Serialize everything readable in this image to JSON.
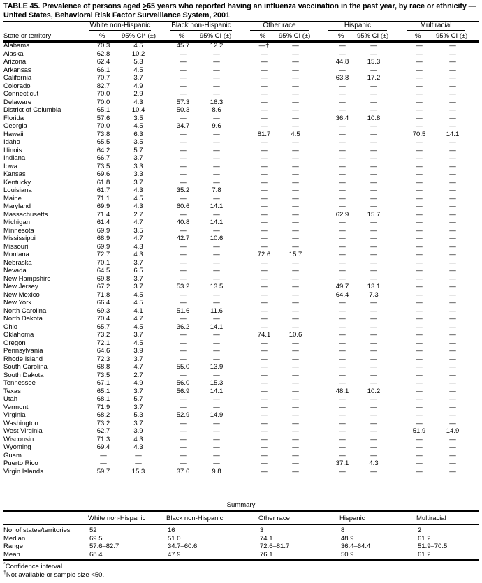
{
  "title": {
    "prefix": "TABLE 45. Prevalence of persons aged ",
    "ge": ">",
    "suffix": "65 years who reported having an influenza vaccination in the past year, by race or ethnicity —  United States, Behavioral Risk Factor Surveillance System, 2001"
  },
  "groups": [
    "White non-Hispanic",
    "Black non-Hispanic",
    "Other race",
    "Hispanic",
    "Multiracial"
  ],
  "col_header_state": "State or territory",
  "col_pct": "%",
  "col_ci_first": "95% CI* (±)",
  "col_ci": "95% CI (±)",
  "rows": [
    [
      "Alabama",
      "70.3",
      "4.5",
      "45.7",
      "12.2",
      "—†",
      "—",
      "—",
      "—",
      "—",
      "—"
    ],
    [
      "Alaska",
      "62.8",
      "10.2",
      "—",
      "—",
      "—",
      "—",
      "—",
      "—",
      "—",
      "—"
    ],
    [
      "Arizona",
      "62.4",
      "5.3",
      "—",
      "—",
      "—",
      "—",
      "44.8",
      "15.3",
      "—",
      "—"
    ],
    [
      "Arkansas",
      "66.1",
      "4.5",
      "—",
      "—",
      "—",
      "—",
      "—",
      "—",
      "—",
      "—"
    ],
    [
      "California",
      "70.7",
      "3.7",
      "—",
      "—",
      "—",
      "—",
      "63.8",
      "17.2",
      "—",
      "—"
    ],
    [
      "Colorado",
      "82.7",
      "4.9",
      "—",
      "—",
      "—",
      "—",
      "—",
      "—",
      "—",
      "—"
    ],
    [
      "Connecticut",
      "70.0",
      "2.9",
      "—",
      "—",
      "—",
      "—",
      "—",
      "—",
      "—",
      "—"
    ],
    [
      "Delaware",
      "70.0",
      "4.3",
      "57.3",
      "16.3",
      "—",
      "—",
      "—",
      "—",
      "—",
      "—"
    ],
    [
      "District of Columbia",
      "65.1",
      "10.4",
      "50.3",
      "8.6",
      "—",
      "—",
      "—",
      "—",
      "—",
      "—"
    ],
    [
      "Florida",
      "57.6",
      "3.5",
      "—",
      "—",
      "—",
      "—",
      "36.4",
      "10.8",
      "—",
      "—"
    ],
    [
      "Georgia",
      "70.0",
      "4.5",
      "34.7",
      "9.6",
      "—",
      "—",
      "—",
      "—",
      "—",
      "—"
    ],
    [
      "Hawaii",
      "73.8",
      "6.3",
      "—",
      "—",
      "81.7",
      "4.5",
      "—",
      "—",
      "70.5",
      "14.1"
    ],
    [
      "Idaho",
      "65.5",
      "3.5",
      "—",
      "—",
      "—",
      "—",
      "—",
      "—",
      "—",
      "—"
    ],
    [
      "Illinois",
      "64.2",
      "5.7",
      "—",
      "—",
      "—",
      "—",
      "—",
      "—",
      "—",
      "—"
    ],
    [
      "Indiana",
      "66.7",
      "3.7",
      "—",
      "—",
      "—",
      "—",
      "—",
      "—",
      "—",
      "—"
    ],
    [
      "Iowa",
      "73.5",
      "3.3",
      "—",
      "—",
      "—",
      "—",
      "—",
      "—",
      "—",
      "—"
    ],
    [
      "Kansas",
      "69.6",
      "3.3",
      "—",
      "—",
      "—",
      "—",
      "—",
      "—",
      "—",
      "—"
    ],
    [
      "Kentucky",
      "61.8",
      "3.7",
      "—",
      "—",
      "—",
      "—",
      "—",
      "—",
      "—",
      "—"
    ],
    [
      "Louisiana",
      "61.7",
      "4.3",
      "35.2",
      "7.8",
      "—",
      "—",
      "—",
      "—",
      "—",
      "—"
    ],
    [
      "Maine",
      "71.1",
      "4.5",
      "—",
      "—",
      "—",
      "—",
      "—",
      "—",
      "—",
      "—"
    ],
    [
      "Maryland",
      "69.9",
      "4.3",
      "60.6",
      "14.1",
      "—",
      "—",
      "—",
      "—",
      "—",
      "—"
    ],
    [
      "Massachusetts",
      "71.4",
      "2.7",
      "—",
      "—",
      "—",
      "—",
      "62.9",
      "15.7",
      "—",
      "—"
    ],
    [
      "Michigan",
      "61.4",
      "4.7",
      "40.8",
      "14.1",
      "—",
      "—",
      "—",
      "—",
      "—",
      "—"
    ],
    [
      "Minnesota",
      "69.9",
      "3.5",
      "—",
      "—",
      "—",
      "—",
      "—",
      "—",
      "—",
      "—"
    ],
    [
      "Mississippi",
      "68.9",
      "4.7",
      "42.7",
      "10.6",
      "—",
      "—",
      "—",
      "—",
      "—",
      "—"
    ],
    [
      "Missouri",
      "69.9",
      "4.3",
      "—",
      "—",
      "—",
      "—",
      "—",
      "—",
      "—",
      "—"
    ],
    [
      "Montana",
      "72.7",
      "4.3",
      "—",
      "—",
      "72.6",
      "15.7",
      "—",
      "—",
      "—",
      "—"
    ],
    [
      "Nebraska",
      "70.1",
      "3.7",
      "—",
      "—",
      "—",
      "—",
      "—",
      "—",
      "—",
      "—"
    ],
    [
      "Nevada",
      "64.5",
      "6.5",
      "—",
      "—",
      "—",
      "—",
      "—",
      "—",
      "—",
      "—"
    ],
    [
      "New Hampshire",
      "69.8",
      "3.7",
      "—",
      "—",
      "—",
      "—",
      "—",
      "—",
      "—",
      "—"
    ],
    [
      "New Jersey",
      "67.2",
      "3.7",
      "53.2",
      "13.5",
      "—",
      "—",
      "49.7",
      "13.1",
      "—",
      "—"
    ],
    [
      "New Mexico",
      "71.8",
      "4.5",
      "—",
      "—",
      "—",
      "—",
      "64.4",
      "7.3",
      "—",
      "—"
    ],
    [
      "New York",
      "66.4",
      "4.5",
      "—",
      "—",
      "—",
      "—",
      "—",
      "—",
      "—",
      "—"
    ],
    [
      "North Carolina",
      "69.3",
      "4.1",
      "51.6",
      "11.6",
      "—",
      "—",
      "—",
      "—",
      "—",
      "—"
    ],
    [
      "North Dakota",
      "70.4",
      "4.7",
      "—",
      "—",
      "—",
      "—",
      "—",
      "—",
      "—",
      "—"
    ],
    [
      "Ohio",
      "65.7",
      "4.5",
      "36.2",
      "14.1",
      "—",
      "—",
      "—",
      "—",
      "—",
      "—"
    ],
    [
      "Oklahoma",
      "73.2",
      "3.7",
      "—",
      "—",
      "74.1",
      "10.6",
      "—",
      "—",
      "—",
      "—"
    ],
    [
      "Oregon",
      "72.1",
      "4.5",
      "—",
      "—",
      "—",
      "—",
      "—",
      "—",
      "—",
      "—"
    ],
    [
      "Pennsylvania",
      "64.6",
      "3.9",
      "—",
      "—",
      "—",
      "—",
      "—",
      "—",
      "—",
      "—"
    ],
    [
      "Rhode Island",
      "72.3",
      "3.7",
      "—",
      "—",
      "—",
      "—",
      "—",
      "—",
      "—",
      "—"
    ],
    [
      "South Carolina",
      "68.8",
      "4.7",
      "55.0",
      "13.9",
      "—",
      "—",
      "—",
      "—",
      "—",
      "—"
    ],
    [
      "South Dakota",
      "73.5",
      "2.7",
      "—",
      "—",
      "—",
      "—",
      "—",
      "—",
      "—",
      "—"
    ],
    [
      "Tennessee",
      "67.1",
      "4.9",
      "56.0",
      "15.3",
      "—",
      "—",
      "—",
      "—",
      "—",
      "—"
    ],
    [
      "Texas",
      "65.1",
      "3.7",
      "56.9",
      "14.1",
      "—",
      "—",
      "48.1",
      "10.2",
      "—",
      "—"
    ],
    [
      "Utah",
      "68.1",
      "5.7",
      "—",
      "—",
      "—",
      "—",
      "—",
      "—",
      "—",
      "—"
    ],
    [
      "Vermont",
      "71.9",
      "3.7",
      "—",
      "—",
      "—",
      "—",
      "—",
      "—",
      "—",
      "—"
    ],
    [
      "Virginia",
      "68.2",
      "5.3",
      "52.9",
      "14.9",
      "—",
      "—",
      "—",
      "—",
      "—",
      "—"
    ],
    [
      "Washington",
      "73.2",
      "3.7",
      "—",
      "—",
      "—",
      "—",
      "—",
      "—",
      "—",
      "—"
    ],
    [
      "West Virginia",
      "62.7",
      "3.9",
      "—",
      "—",
      "—",
      "—",
      "—",
      "—",
      "51.9",
      "14.9"
    ],
    [
      "Wisconsin",
      "71.3",
      "4.3",
      "—",
      "—",
      "—",
      "—",
      "—",
      "—",
      "—",
      "—"
    ],
    [
      "Wyoming",
      "69.4",
      "4.3",
      "—",
      "—",
      "—",
      "—",
      "—",
      "—",
      "—",
      "—"
    ],
    [
      "Guam",
      "—",
      "—",
      "—",
      "—",
      "—",
      "—",
      "—",
      "—",
      "—",
      "—"
    ],
    [
      "Puerto Rico",
      "—",
      "—",
      "—",
      "—",
      "—",
      "—",
      "37.1",
      "4.3",
      "—",
      "—"
    ],
    [
      "Virgin Islands",
      "59.7",
      "15.3",
      "37.6",
      "9.8",
      "—",
      "—",
      "—",
      "—",
      "—",
      "—"
    ]
  ],
  "summary": {
    "title": "Summary",
    "headers": [
      "White non-Hispanic",
      "Black non-Hispanic",
      "Other race",
      "Hispanic",
      "Multiracial"
    ],
    "rows": [
      [
        "No. of states/territories",
        "52",
        "16",
        "3",
        "8",
        "2"
      ],
      [
        "Median",
        "69.5",
        "51.0",
        "74.1",
        "48.9",
        "61.2"
      ],
      [
        "Range",
        "57.6–82.7",
        "34.7–60.6",
        "72.6–81.7",
        "36.4–64.4",
        "51.9–70.5"
      ],
      [
        "Mean",
        "68.4",
        "47.9",
        "76.1",
        "50.9",
        "61.2"
      ]
    ]
  },
  "footnotes": [
    {
      "mark": "*",
      "text": "Confidence interval."
    },
    {
      "mark": "†",
      "text": "Not available or sample size <50."
    }
  ]
}
